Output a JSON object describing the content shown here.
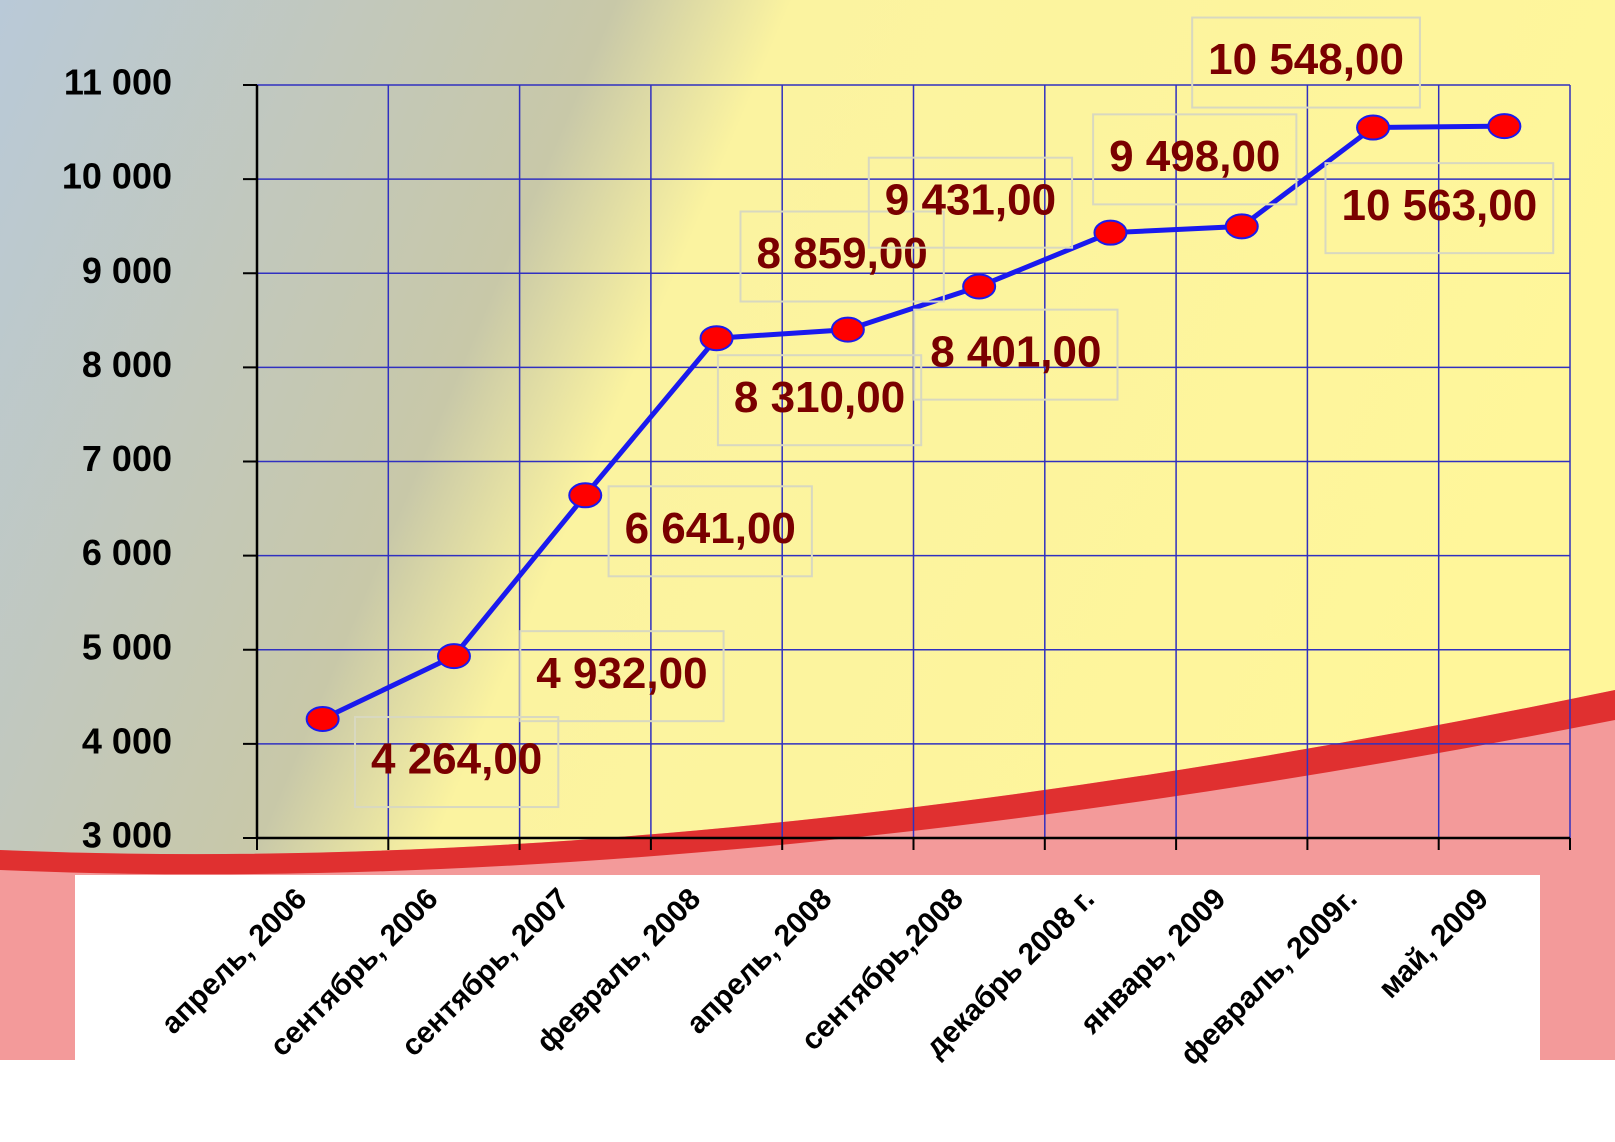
{
  "chart_data": {
    "type": "line",
    "categories": [
      "апрель, 2006",
      "сентябрь, 2006",
      "сентябрь, 2007",
      "февраль, 2008",
      "апрель, 2008",
      "сентябрь,2008",
      "декабрь 2008 г.",
      "январь, 2009",
      "февраль, 2009г.",
      "май, 2009"
    ],
    "values": [
      4264,
      4932,
      6641,
      8310,
      8401,
      8859,
      9431,
      9498,
      10548,
      10563
    ],
    "value_labels": [
      "4 264,00",
      "4 932,00",
      "6 641,00",
      "8 310,00",
      "8 401,00",
      "8 859,00",
      "9 431,00",
      "9 498,00",
      "10 548,00",
      "10 563,00"
    ],
    "color": "#1a1aee",
    "marker_color": "#ff0000",
    "ylim": [
      3000,
      11000
    ],
    "yticks": [
      {
        "value": 3000,
        "label": "3 000"
      },
      {
        "value": 4000,
        "label": "4 000"
      },
      {
        "value": 5000,
        "label": "5 000"
      },
      {
        "value": 6000,
        "label": "6 000"
      },
      {
        "value": 7000,
        "label": "7 000"
      },
      {
        "value": 8000,
        "label": "8 000"
      },
      {
        "value": 9000,
        "label": "9 000"
      },
      {
        "value": 10000,
        "label": "10 000"
      },
      {
        "value": 11000,
        "label": "11 000"
      }
    ],
    "grid": true
  }
}
